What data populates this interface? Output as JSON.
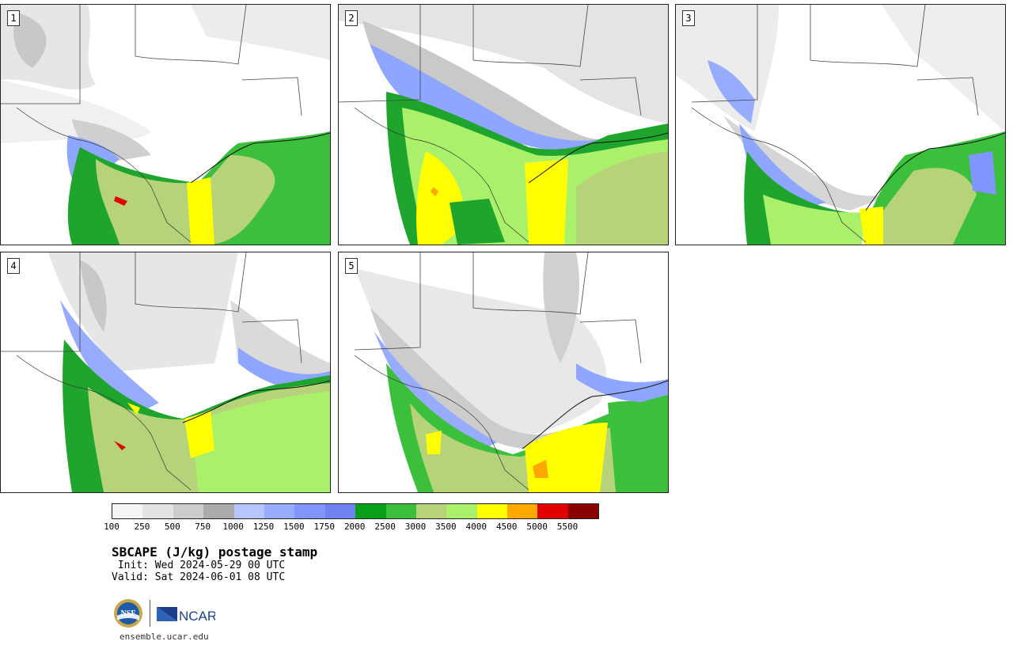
{
  "panels": [
    {
      "label": "1"
    },
    {
      "label": "2"
    },
    {
      "label": "3"
    },
    {
      "label": "4"
    },
    {
      "label": "5"
    }
  ],
  "colorbar": {
    "colors": [
      "#f5f5f5",
      "#e3e3e3",
      "#cccccc",
      "#aaaaaa",
      "#b7c6ff",
      "#97acff",
      "#7f95ff",
      "#7083f4",
      "#06a01a",
      "#3cbf3c",
      "#b6d37a",
      "#aaf06a",
      "#ffff00",
      "#ffa800",
      "#e00000",
      "#8a0000"
    ],
    "ticks": [
      "100",
      "250",
      "500",
      "750",
      "1000",
      "1250",
      "1500",
      "1750",
      "2000",
      "2500",
      "3000",
      "3500",
      "4000",
      "4500",
      "5000",
      "5500"
    ]
  },
  "title": "SBCAPE (J/kg) postage stamp",
  "init_text": " Init: Wed 2024-05-29 00 UTC",
  "valid_text": "Valid: Sat 2024-06-01 08 UTC",
  "logos": {
    "nsf": "NSF",
    "ncar": "NCAR"
  },
  "site_url": "ensemble.ucar.edu"
}
